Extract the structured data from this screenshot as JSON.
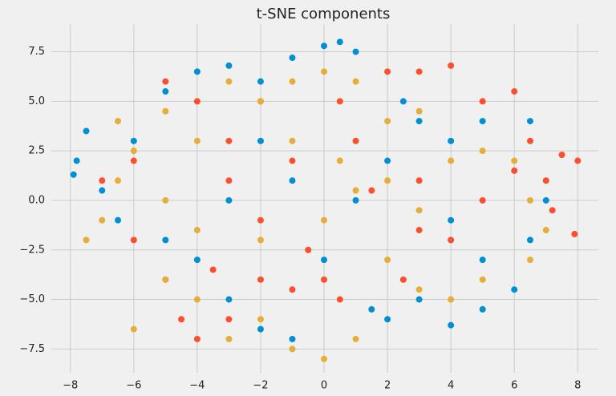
{
  "chart_data": {
    "type": "scatter",
    "title": "t-SNE components",
    "xlim": [
      -8.6,
      8.65
    ],
    "ylim": [
      -8.7,
      8.9
    ],
    "grid": true,
    "xticks": [
      {
        "value": -8,
        "label": "−8"
      },
      {
        "value": -6,
        "label": "−6"
      },
      {
        "value": -4,
        "label": "−4"
      },
      {
        "value": -2,
        "label": "−2"
      },
      0,
      2,
      4,
      6,
      8
    ],
    "yticks": [
      {
        "value": -7.5,
        "label": "−7.5"
      },
      {
        "value": -5,
        "label": "−5.0"
      },
      {
        "value": -2.5,
        "label": "−2.5"
      },
      {
        "value": 0,
        "label": "0.0"
      },
      {
        "value": 2.5,
        "label": "2.5"
      },
      {
        "value": 5,
        "label": "5.0"
      },
      {
        "value": 7.5,
        "label": "7.5"
      }
    ],
    "series": [
      {
        "color": "#008fd5",
        "x": [
          -7.8,
          -7.5,
          -7.9,
          -7,
          -6.5,
          -5,
          -4,
          -3,
          -1,
          0,
          0.5,
          1,
          -2,
          2.5,
          3,
          4,
          5,
          6.5,
          7,
          6.5,
          6,
          5,
          4,
          3,
          2,
          1.5,
          0,
          -1,
          -2,
          -3,
          -4,
          -5,
          -3,
          -1,
          1,
          2,
          4,
          5,
          -6,
          -2
        ],
        "values": [
          2,
          3.5,
          1.3,
          0.5,
          -1,
          5.5,
          6.5,
          6.8,
          7.2,
          7.8,
          8,
          7.5,
          6,
          5,
          4,
          3,
          4,
          4,
          0,
          -2,
          -4.5,
          -5.5,
          -6.3,
          -5,
          -6,
          -5.5,
          -3,
          -7,
          -6.5,
          -5,
          -3,
          -2,
          0,
          1,
          0,
          2,
          -1,
          -3,
          3,
          3
        ]
      },
      {
        "color": "#fc4f30",
        "x": [
          -7,
          -6,
          -5,
          -4,
          -3,
          -2,
          -1,
          0,
          0.5,
          -2,
          -1,
          -3,
          -4,
          -5,
          -2,
          1,
          2,
          3,
          4,
          5,
          6,
          6.5,
          7,
          7.5,
          8,
          7.9,
          7.2,
          5,
          4,
          3,
          2.5,
          1.5,
          -0.5,
          -3.5,
          -6,
          -3,
          0.5,
          3,
          -4.5,
          6
        ],
        "values": [
          1,
          -2,
          -4,
          -7,
          -6,
          -4,
          -4.5,
          -4,
          -5,
          -1,
          2,
          3,
          5,
          6,
          5,
          3,
          6.5,
          6.5,
          6.8,
          5,
          5.5,
          3,
          1,
          2.3,
          2,
          -1.7,
          -0.5,
          0,
          -2,
          -1.5,
          -4,
          0.5,
          -2.5,
          -3.5,
          2,
          1,
          5,
          1,
          -6,
          1.5
        ]
      },
      {
        "color": "#e5ae38",
        "x": [
          -7.5,
          -7,
          -6.5,
          -6,
          -6.5,
          -5,
          -4,
          -3,
          -2,
          -1,
          0,
          1,
          2,
          3,
          4,
          5,
          6,
          6.5,
          7,
          6.5,
          5,
          4,
          3,
          2,
          1,
          0,
          -1,
          -2,
          -3,
          -4,
          -5,
          -6,
          -4,
          -2,
          0,
          1,
          2,
          3,
          -1,
          -5,
          0.5
        ],
        "values": [
          -2,
          -1,
          1,
          2.5,
          4,
          4.5,
          3,
          6,
          5,
          6,
          6.5,
          6,
          4,
          4.5,
          2,
          2.5,
          2,
          0,
          -1.5,
          -3,
          -4,
          -5,
          -4.5,
          -3,
          -7,
          -8,
          -7.5,
          -6,
          -7,
          -5,
          -4,
          -6.5,
          -1.5,
          -2,
          -1,
          0.5,
          1,
          -0.5,
          3,
          0,
          2
        ]
      }
    ]
  }
}
